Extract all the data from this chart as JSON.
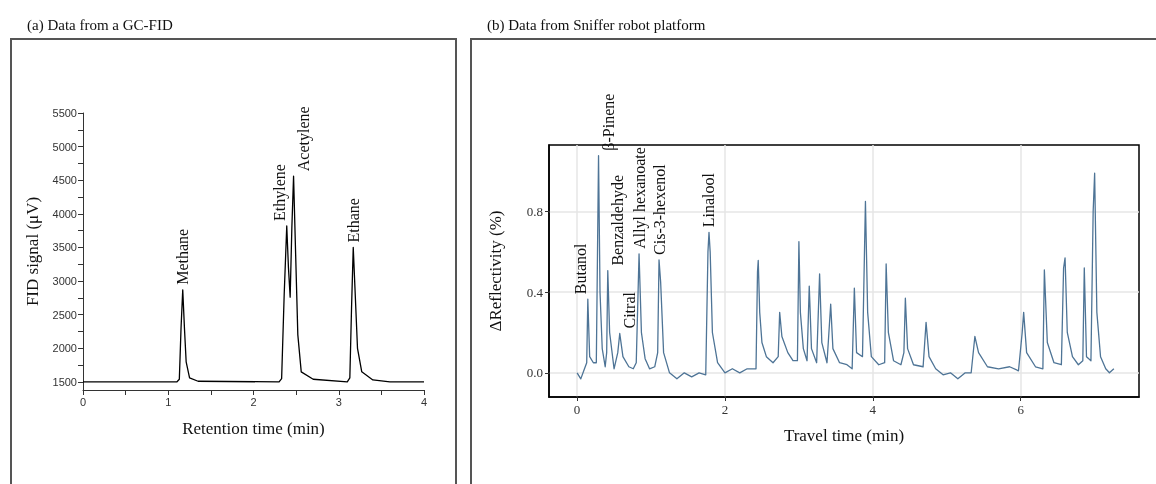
{
  "chart_data": [
    {
      "type": "line",
      "title": "(a) Data from a GC-FID",
      "xlabel": "Retention time (min)",
      "ylabel": "FID signal (μV)",
      "xlim": [
        0,
        4
      ],
      "ylim": [
        1380,
        5500
      ],
      "xticks": [
        0,
        {
          "value": 0.5,
          "label": null
        },
        1,
        {
          "value": 1.5,
          "label": null
        },
        2,
        {
          "value": 2.5,
          "label": null
        },
        3,
        {
          "value": 3.5,
          "label": null
        },
        4
      ],
      "yticks": [
        1500,
        {
          "value": 1750,
          "label": null
        },
        2000,
        {
          "value": 2250,
          "label": null
        },
        2500,
        {
          "value": 2750,
          "label": null
        },
        3000,
        {
          "value": 3250,
          "label": null
        },
        3500,
        {
          "value": 3750,
          "label": null
        },
        4000,
        {
          "value": 4250,
          "label": null
        },
        4500,
        {
          "value": 4750,
          "label": null
        },
        5000,
        {
          "value": 5250,
          "label": null
        },
        5500
      ],
      "series": [
        {
          "color": "#000000",
          "x": [
            0,
            1.1,
            1.13,
            1.15,
            1.17,
            1.19,
            1.21,
            1.25,
            1.35,
            2.3,
            2.33,
            2.36,
            2.39,
            2.41,
            2.43,
            2.45,
            2.47,
            2.49,
            2.52,
            2.56,
            2.7,
            3.1,
            3.13,
            3.15,
            3.17,
            3.19,
            3.22,
            3.27,
            3.4,
            3.6,
            4
          ],
          "values": [
            1500,
            1500,
            1540,
            2300,
            2870,
            2300,
            1800,
            1560,
            1510,
            1500,
            1550,
            2800,
            3820,
            3200,
            2760,
            3800,
            4560,
            3600,
            2200,
            1650,
            1540,
            1500,
            1560,
            2600,
            3500,
            2900,
            2000,
            1650,
            1530,
            1500,
            1500
          ]
        }
      ],
      "annotations": [
        {
          "text": "Methane",
          "x": 1.17,
          "y": 2870
        },
        {
          "text": "Ethylene",
          "x": 2.39,
          "y": 3820
        },
        {
          "text": "Acetylene",
          "x": 2.47,
          "y": 4560
        },
        {
          "text": "Ethane",
          "x": 3.17,
          "y": 3500
        }
      ],
      "marker": "none",
      "line_style": "solid"
    },
    {
      "type": "line",
      "title": "(b) Data from Sniffer robot platform",
      "xlabel": "Travel time (min)",
      "ylabel": "ΔReflectivity (%)",
      "xlim": [
        -0.38,
        7.6
      ],
      "ylim": [
        -0.12,
        1.13
      ],
      "xticks": [
        0,
        2,
        4,
        6
      ],
      "yticks": [
        {
          "value": 0,
          "label": "0.0"
        },
        0.4,
        0.8
      ],
      "grid": true,
      "series": [
        {
          "color": "#4e7496",
          "x": [
            0,
            0.05,
            0.1,
            0.13,
            0.145,
            0.17,
            0.22,
            0.26,
            0.29,
            0.31,
            0.34,
            0.38,
            0.4,
            0.415,
            0.44,
            0.5,
            0.55,
            0.577,
            0.62,
            0.7,
            0.76,
            0.8,
            0.838,
            0.87,
            0.92,
            0.98,
            1.05,
            1.09,
            1.108,
            1.13,
            1.17,
            1.25,
            1.35,
            1.45,
            1.55,
            1.65,
            1.74,
            1.77,
            1.784,
            1.8,
            1.83,
            1.9,
            2.0,
            2.1,
            2.2,
            2.3,
            2.42,
            2.44,
            2.45,
            2.47,
            2.5,
            2.56,
            2.65,
            2.72,
            2.74,
            2.77,
            2.85,
            2.92,
            2.98,
            3.0,
            3.02,
            3.06,
            3.11,
            3.14,
            3.17,
            3.24,
            3.28,
            3.31,
            3.38,
            3.43,
            3.46,
            3.55,
            3.65,
            3.72,
            3.75,
            3.78,
            3.86,
            3.9,
            3.93,
            3.98,
            4.08,
            4.16,
            4.18,
            4.21,
            4.28,
            4.38,
            4.42,
            4.44,
            4.47,
            4.55,
            4.68,
            4.72,
            4.76,
            4.85,
            4.95,
            5.05,
            5.15,
            5.25,
            5.33,
            5.38,
            5.43,
            5.55,
            5.7,
            5.85,
            5.97,
            6.02,
            6.04,
            6.08,
            6.2,
            6.3,
            6.32,
            6.36,
            6.45,
            6.55,
            6.58,
            6.6,
            6.63,
            6.7,
            6.78,
            6.84,
            6.86,
            6.89,
            6.95,
            6.98,
            7.0,
            7.03,
            7.08,
            7.15,
            7.2,
            7.26
          ],
          "values": [
            0,
            -0.03,
            0.02,
            0.05,
            0.365,
            0.08,
            0.05,
            0.05,
            1.077,
            0.4,
            0.12,
            0.03,
            0.1,
            0.507,
            0.2,
            0.02,
            0.1,
            0.195,
            0.08,
            0.03,
            0.02,
            0.05,
            0.59,
            0.2,
            0.07,
            0.02,
            0.03,
            0.1,
            0.56,
            0.45,
            0.1,
            0,
            -0.03,
            0,
            -0.02,
            0,
            -0.01,
            0.6,
            0.697,
            0.6,
            0.2,
            0.05,
            0,
            0.02,
            0,
            0.02,
            0.02,
            0.5,
            0.557,
            0.3,
            0.15,
            0.08,
            0.05,
            0.08,
            0.3,
            0.18,
            0.1,
            0.06,
            0.06,
            0.65,
            0.3,
            0.12,
            0.06,
            0.43,
            0.12,
            0.05,
            0.49,
            0.15,
            0.05,
            0.34,
            0.12,
            0.05,
            0.04,
            0.02,
            0.42,
            0.1,
            0.08,
            0.85,
            0.3,
            0.08,
            0.04,
            0.05,
            0.54,
            0.2,
            0.06,
            0.04,
            0.1,
            0.37,
            0.12,
            0.04,
            0.03,
            0.25,
            0.08,
            0.02,
            -0.01,
            0,
            -0.03,
            0,
            0,
            0.18,
            0.1,
            0.03,
            0.02,
            0.03,
            0.01,
            0.2,
            0.3,
            0.1,
            0.03,
            0.02,
            0.51,
            0.15,
            0.05,
            0.04,
            0.52,
            0.57,
            0.2,
            0.08,
            0.04,
            0.06,
            0.52,
            0.08,
            0.06,
            0.8,
            0.99,
            0.3,
            0.08,
            0.02,
            0,
            0.02
          ]
        }
      ],
      "annotations": [
        {
          "text": "Butanol",
          "x": 0.145,
          "y": 0.365
        },
        {
          "text": "β-Pinene",
          "x": 0.29,
          "y": 1.077
        },
        {
          "text": "Benzaldehyde",
          "x": 0.415,
          "y": 0.507
        },
        {
          "text": "Citral",
          "x": 0.577,
          "y": 0.195
        },
        {
          "text": "Allyl hexanoate",
          "x": 0.838,
          "y": 0.59
        },
        {
          "text": "Cis-3-hexenol",
          "x": 1.108,
          "y": 0.56
        },
        {
          "text": "Linalool",
          "x": 1.784,
          "y": 0.697
        }
      ],
      "marker": "none",
      "line_style": "solid"
    }
  ]
}
